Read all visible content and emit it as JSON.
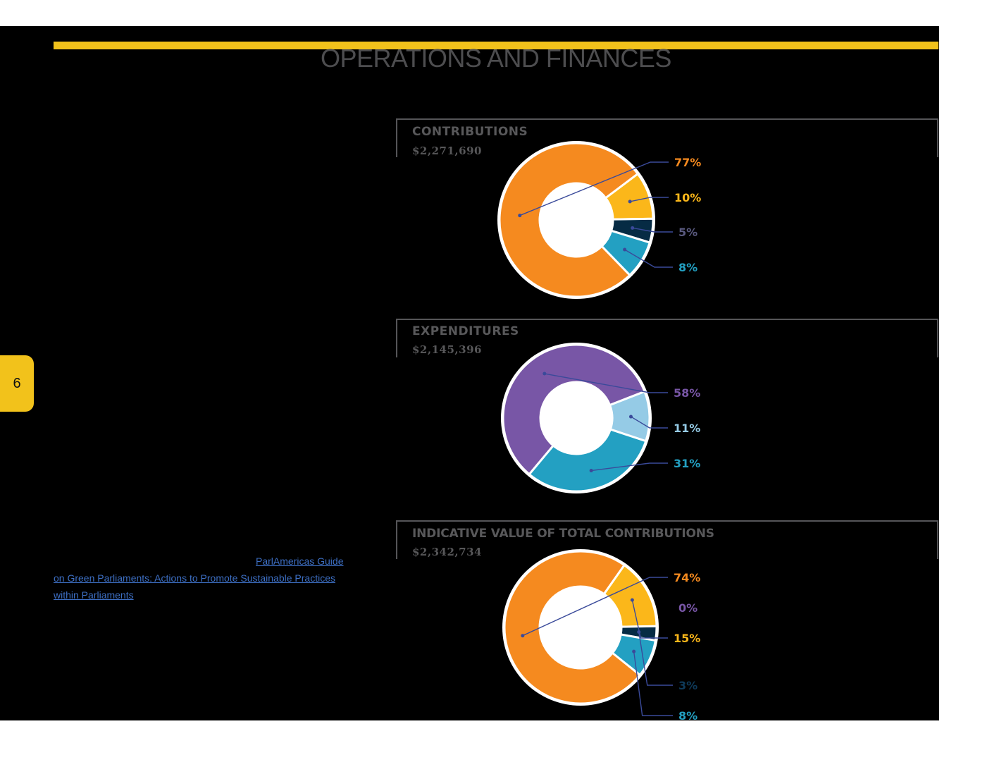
{
  "page": {
    "title": "OPERATIONS AND FINANCES",
    "page_number": "6",
    "guide_link": {
      "line1": "ParlAmericas Guide ",
      "line2": "on Green Parliaments: Actions to Promote Sustainable Practices",
      "line3": "within Parliaments"
    },
    "colors": {
      "accent": "#f2c21b",
      "background": "#000000",
      "link": "#3d6fc4"
    }
  },
  "chart_data": [
    {
      "type": "pie",
      "title": "CONTRIBUTIONS",
      "subtitle": "$2,271,690",
      "slices": [
        {
          "label": "77%",
          "value": 77,
          "color": "#f58a1f",
          "label_color": "#f58a1f"
        },
        {
          "label": "10%",
          "value": 10,
          "color": "#fbb71a",
          "label_color": "#fbb71a"
        },
        {
          "label": "5%",
          "value": 5,
          "color": "#062b44",
          "label_color": "#5a5a80"
        },
        {
          "label": "8%",
          "value": 8,
          "color": "#23a0c2",
          "label_color": "#23a0c2"
        }
      ]
    },
    {
      "type": "pie",
      "title": "EXPENDITURES",
      "subtitle": "$2,145,396",
      "slices": [
        {
          "label": "58%",
          "value": 58,
          "color": "#7856a6",
          "label_color": "#7856a6"
        },
        {
          "label": "11%",
          "value": 11,
          "color": "#95cbe6",
          "label_color": "#95cbe6"
        },
        {
          "label": "31%",
          "value": 31,
          "color": "#23a0c2",
          "label_color": "#23a0c2"
        }
      ]
    },
    {
      "type": "pie",
      "title": "INDICATIVE VALUE OF TOTAL CONTRIBUTIONS",
      "subtitle": "$2,342,734",
      "slices": [
        {
          "label": "74%",
          "value": 74,
          "color": "#f58a1f",
          "label_color": "#f58a1f"
        },
        {
          "label": "0%",
          "value": 0,
          "color": "#7856a6",
          "label_color": "#7856a6"
        },
        {
          "label": "15%",
          "value": 15,
          "color": "#fbb71a",
          "label_color": "#fbb71a"
        },
        {
          "label": "3%",
          "value": 3,
          "color": "#062b44",
          "label_color": "#0e3a5a"
        },
        {
          "label": "8%",
          "value": 8,
          "color": "#23a0c2",
          "label_color": "#23a0c2"
        }
      ]
    }
  ]
}
